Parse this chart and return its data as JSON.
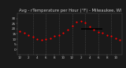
{
  "title": "Avg - rTemperature per Hour (°F) - Milwaukee, WI",
  "background_color": "#1a1a1a",
  "plot_bg_color": "#1a1a1a",
  "grid_color": "#555555",
  "dot_color": "#ff0000",
  "line_color": "#000000",
  "tick_color": "#cccccc",
  "title_color": "#cccccc",
  "hours": [
    0,
    1,
    2,
    3,
    4,
    5,
    6,
    7,
    8,
    9,
    10,
    11,
    12,
    13,
    14,
    15,
    16,
    17,
    18,
    19,
    20,
    21,
    22,
    23
  ],
  "temps": [
    18,
    16,
    14,
    12,
    10,
    9,
    10,
    11,
    13,
    14,
    16,
    19,
    23,
    27,
    28,
    26,
    22,
    19,
    17,
    16,
    14,
    13,
    11,
    9
  ],
  "avg_line_x": [
    14,
    19
  ],
  "avg_line_y": [
    20,
    20
  ],
  "ylim_min": -5,
  "ylim_max": 35,
  "ytick_vals": [
    0,
    5,
    10,
    15,
    20,
    25,
    30
  ],
  "xtick_hours": [
    0,
    2,
    4,
    6,
    8,
    10,
    12,
    14,
    16,
    18,
    20,
    22
  ],
  "xtick_labels": [
    "12",
    "2",
    "4",
    "6",
    "8",
    "10",
    "12",
    "2",
    "4",
    "6",
    "8",
    "10"
  ],
  "title_fontsize": 3.8,
  "tick_fontsize": 3.0,
  "dot_size": 2.5,
  "line_width": 1.2,
  "dashed_vert_hours": [
    3,
    6,
    9,
    12,
    15,
    18,
    21
  ]
}
